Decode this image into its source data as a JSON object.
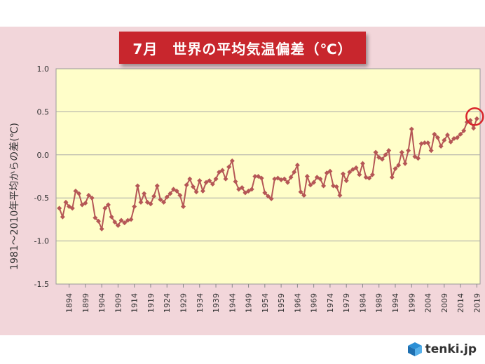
{
  "chart_data": {
    "type": "line",
    "title": "7月　世界の平均気温偏差（℃）",
    "ylabel": "1981～2010年平均からの差(℃)",
    "xlabel": "",
    "ylim": [
      -1.5,
      1.0
    ],
    "yticks": [
      "1.0",
      "0.5",
      "0.0",
      "-0.5",
      "-1.0",
      "-1.5"
    ],
    "xticks": [
      "1894",
      "1899",
      "1904",
      "1909",
      "1914",
      "1919",
      "1924",
      "1929",
      "1934",
      "1939",
      "1944",
      "1949",
      "1954",
      "1959",
      "1964",
      "1969",
      "1974",
      "1979",
      "1984",
      "1989",
      "1994",
      "1999",
      "2004",
      "2009",
      "2014",
      "2019"
    ],
    "grid": true,
    "highlight": {
      "x": 2019,
      "y": 0.42
    },
    "series": [
      {
        "x": [
          1891,
          1892,
          1893,
          1894,
          1895,
          1896,
          1897,
          1898,
          1899,
          1900,
          1901,
          1902,
          1903,
          1904,
          1905,
          1906,
          1907,
          1908,
          1909,
          1910,
          1911,
          1912,
          1913,
          1914,
          1915,
          1916,
          1917,
          1918,
          1919,
          1920,
          1921,
          1922,
          1923,
          1924,
          1925,
          1926,
          1927,
          1928,
          1929,
          1930,
          1931,
          1932,
          1933,
          1934,
          1935,
          1936,
          1937,
          1938,
          1939,
          1940,
          1941,
          1942,
          1943,
          1944,
          1945,
          1946,
          1947,
          1948,
          1949,
          1950,
          1951,
          1952,
          1953,
          1954,
          1955,
          1956,
          1957,
          1958,
          1959,
          1960,
          1961,
          1962,
          1963,
          1964,
          1965,
          1966,
          1967,
          1968,
          1969,
          1970,
          1971,
          1972,
          1973,
          1974,
          1975,
          1976,
          1977,
          1978,
          1979,
          1980,
          1981,
          1982,
          1983,
          1984,
          1985,
          1986,
          1987,
          1988,
          1989,
          1990,
          1991,
          1992,
          1993,
          1994,
          1995,
          1996,
          1997,
          1998,
          1999,
          2000,
          2001,
          2002,
          2003,
          2004,
          2005,
          2006,
          2007,
          2008,
          2009,
          2010,
          2011,
          2012,
          2013,
          2014,
          2015,
          2016,
          2017,
          2018,
          2019
        ],
        "values": [
          -0.62,
          -0.72,
          -0.55,
          -0.6,
          -0.62,
          -0.42,
          -0.45,
          -0.58,
          -0.56,
          -0.47,
          -0.5,
          -0.73,
          -0.77,
          -0.86,
          -0.62,
          -0.58,
          -0.72,
          -0.78,
          -0.82,
          -0.76,
          -0.79,
          -0.76,
          -0.75,
          -0.6,
          -0.36,
          -0.55,
          -0.45,
          -0.55,
          -0.57,
          -0.48,
          -0.36,
          -0.52,
          -0.55,
          -0.49,
          -0.45,
          -0.4,
          -0.42,
          -0.47,
          -0.6,
          -0.35,
          -0.28,
          -0.37,
          -0.43,
          -0.3,
          -0.42,
          -0.32,
          -0.3,
          -0.34,
          -0.28,
          -0.2,
          -0.18,
          -0.28,
          -0.14,
          -0.07,
          -0.31,
          -0.4,
          -0.38,
          -0.44,
          -0.42,
          -0.4,
          -0.25,
          -0.25,
          -0.27,
          -0.44,
          -0.48,
          -0.51,
          -0.28,
          -0.27,
          -0.29,
          -0.28,
          -0.32,
          -0.26,
          -0.2,
          -0.12,
          -0.43,
          -0.47,
          -0.25,
          -0.35,
          -0.32,
          -0.26,
          -0.28,
          -0.36,
          -0.21,
          -0.19,
          -0.36,
          -0.37,
          -0.47,
          -0.22,
          -0.3,
          -0.2,
          -0.17,
          -0.15,
          -0.23,
          -0.1,
          -0.26,
          -0.27,
          -0.23,
          0.03,
          -0.03,
          -0.05,
          0.0,
          0.05,
          -0.26,
          -0.16,
          -0.12,
          0.03,
          -0.1,
          0.05,
          0.3,
          -0.02,
          -0.04,
          0.13,
          0.14,
          0.14,
          0.05,
          0.24,
          0.2,
          0.1,
          0.17,
          0.23,
          0.15,
          0.19,
          0.2,
          0.24,
          0.28,
          0.38,
          0.4,
          0.31,
          0.42
        ]
      }
    ]
  },
  "logo": {
    "text": "tenki.jp"
  }
}
